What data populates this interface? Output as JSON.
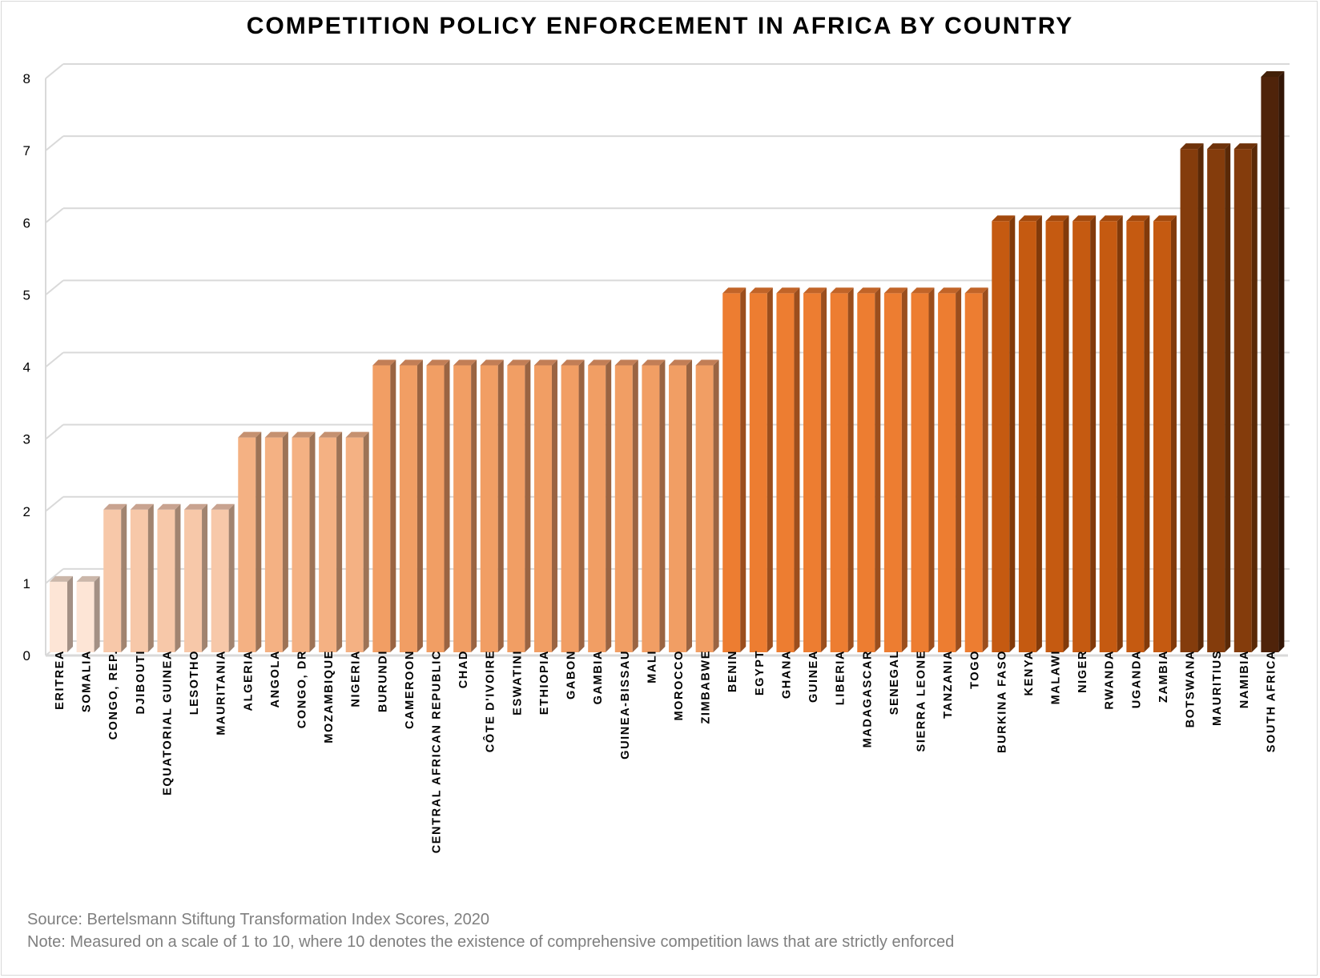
{
  "chart_data": {
    "type": "bar",
    "title": "COMPETITION POLICY ENFORCEMENT IN AFRICA BY COUNTRY",
    "xlabel": "",
    "ylabel": "",
    "ylim": [
      0,
      8
    ],
    "yticks": [
      0,
      1,
      2,
      3,
      4,
      5,
      6,
      7,
      8
    ],
    "grid": true,
    "legend": "none",
    "style": "3d-column",
    "categories": [
      "ERITREA",
      "SOMALIA",
      "CONGO, REP.",
      "DJIBOUTI",
      "EQUATORIAL GUINEA",
      "LESOTHO",
      "MAURITANIA",
      "ALGERIA",
      "ANGOLA",
      "CONGO, DR",
      "MOZAMBIQUE",
      "NIGERIA",
      "BURUNDI",
      "CAMEROON",
      "CENTRAL AFRICAN REPUBLIC",
      "CHAD",
      "CÔTE D'IVOIRE",
      "ESWATINI",
      "ETHIOPIA",
      "GABON",
      "GAMBIA",
      "GUINEA-BISSAU",
      "MALI",
      "MOROCCO",
      "ZIMBABWE",
      "BENIN",
      "EGYPT",
      "GHANA",
      "GUINEA",
      "LIBERIA",
      "MADAGASCAR",
      "SENEGAL",
      "SIERRA LEONE",
      "TANZANIA",
      "TOGO",
      "BURKINA FASO",
      "KENYA",
      "MALAWI",
      "NIGER",
      "RWANDA",
      "UGANDA",
      "ZAMBIA",
      "BOTSWANA",
      "MAURITIUS",
      "NAMIBIA",
      "SOUTH AFRICA"
    ],
    "values": [
      1,
      1,
      2,
      2,
      2,
      2,
      2,
      3,
      3,
      3,
      3,
      3,
      4,
      4,
      4,
      4,
      4,
      4,
      4,
      4,
      4,
      4,
      4,
      4,
      4,
      5,
      5,
      5,
      5,
      5,
      5,
      5,
      5,
      5,
      5,
      6,
      6,
      6,
      6,
      6,
      6,
      6,
      7,
      7,
      7,
      8
    ],
    "value_colors": {
      "1": {
        "front": "#fde5d6",
        "side": "#a39085",
        "top": "#cbb7aa"
      },
      "2": {
        "front": "#f7c8a9",
        "side": "#a18470",
        "top": "#c8a390"
      },
      "3": {
        "front": "#f4b183",
        "side": "#9d7356",
        "top": "#c59170"
      },
      "4": {
        "front": "#f19e64",
        "side": "#9a6442",
        "top": "#c27e56"
      },
      "5": {
        "front": "#ed7d31",
        "side": "#9b4e1d",
        "top": "#c16428"
      },
      "6": {
        "front": "#c55a11",
        "side": "#823a0a",
        "top": "#a3490d"
      },
      "7": {
        "front": "#843c0c",
        "side": "#5a2907",
        "top": "#6e320a"
      },
      "8": {
        "front": "#4f230a",
        "side": "#331606",
        "top": "#422008"
      }
    }
  },
  "footer": {
    "source": "Source: Bertelsmann Stiftung Transformation Index Scores, 2020",
    "note": "Note: Measured on a scale of 1 to 10, where 10 denotes the existence of comprehensive competition laws that are strictly enforced"
  }
}
